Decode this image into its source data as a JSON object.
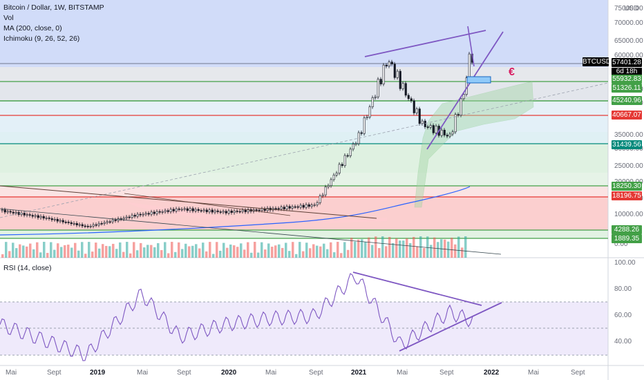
{
  "legend": {
    "title": "Bitcoin / Dollar, 1W, BITSTAMP",
    "vol": "Vol",
    "ma": "MA (200, close, 0)",
    "ichimoku": "Ichimoku (9, 26, 52, 26)",
    "rsi": "RSI (14, close)"
  },
  "currency": "USD",
  "symbol_badge": "BTCUSD",
  "last_price": "57401.28",
  "countdown": "6d 18h",
  "euro_symbol": "€",
  "price_axis": {
    "ticks": [
      "75000.00",
      "70000.00",
      "65000.00",
      "60000.00",
      "50000.00",
      "45000.00",
      "35000.00",
      "30000.00",
      "25000.00",
      "20000.00",
      "15000.00",
      "10000.00",
      "5000.00",
      "0.00"
    ]
  },
  "rsi_axis": {
    "ticks": [
      "100.00",
      "80.00",
      "60.00",
      "40.00"
    ]
  },
  "x_axis": {
    "labels": [
      {
        "text": "Mai",
        "bold": false
      },
      {
        "text": "Sept",
        "bold": false
      },
      {
        "text": "2019",
        "bold": true
      },
      {
        "text": "Mai",
        "bold": false
      },
      {
        "text": "Sept",
        "bold": false
      },
      {
        "text": "2020",
        "bold": true
      },
      {
        "text": "Mai",
        "bold": false
      },
      {
        "text": "Sept",
        "bold": false
      },
      {
        "text": "2021",
        "bold": true
      },
      {
        "text": "Mai",
        "bold": false
      },
      {
        "text": "Sept",
        "bold": false
      },
      {
        "text": "2022",
        "bold": true
      },
      {
        "text": "Mai",
        "bold": false
      },
      {
        "text": "Sept",
        "bold": false
      }
    ]
  },
  "level_lines": [
    {
      "label": "55932.83",
      "color": "#43a047"
    },
    {
      "label": "51326.11",
      "color": "#43a047"
    },
    {
      "label": "45240.96",
      "color": "#43a047"
    },
    {
      "label": "40667.07",
      "color": "#e53935"
    },
    {
      "label": "31439.56",
      "color": "#00897b"
    },
    {
      "label": "18250.30",
      "color": "#43a047"
    },
    {
      "label": "18196.75",
      "color": "#e53935"
    },
    {
      "label": "4288.26",
      "color": "#43a047"
    },
    {
      "label": "1889.35",
      "color": "#43a047"
    }
  ],
  "colors": {
    "up": "#26a69a",
    "down": "#ef5350",
    "candle": "#131722",
    "drawing": "#7e57c2",
    "ma": "#2962ff",
    "rsi": "#7e57c2",
    "cloud": "#a5d6a7"
  },
  "chart_data": [
    {
      "type": "line",
      "title": "Bitcoin / Dollar, 1W, BITSTAMP",
      "x": [
        "2018-05",
        "2018-09",
        "2019-01",
        "2019-05",
        "2019-09",
        "2020-01",
        "2020-05",
        "2020-09",
        "2021-01",
        "2021-03",
        "2021-05",
        "2021-07",
        "2021-09",
        "2021-10",
        "2021-11"
      ],
      "series": [
        {
          "name": "BTCUSD",
          "values": [
            9000,
            6600,
            3800,
            7500,
            9500,
            8500,
            9500,
            10800,
            33000,
            58000,
            37000,
            33000,
            47000,
            61000,
            57401.28
          ]
        }
      ],
      "ylim": [
        0,
        75000
      ],
      "horizontal_levels": [
        55932.83,
        51326.11,
        45240.96,
        40667.07,
        31439.56,
        18250.3,
        18196.75,
        4288.26,
        1889.35
      ]
    },
    {
      "type": "line",
      "title": "RSI (14, close)",
      "x": [
        "2018-05",
        "2018-09",
        "2019-01",
        "2019-05",
        "2019-09",
        "2020-01",
        "2020-05",
        "2020-09",
        "2021-01",
        "2021-05",
        "2021-09",
        "2021-11"
      ],
      "series": [
        {
          "name": "RSI",
          "values": [
            55,
            42,
            30,
            80,
            45,
            55,
            60,
            62,
            95,
            38,
            65,
            58
          ]
        }
      ],
      "ylim": [
        25,
        105
      ],
      "bands": [
        70,
        50,
        30
      ]
    }
  ]
}
